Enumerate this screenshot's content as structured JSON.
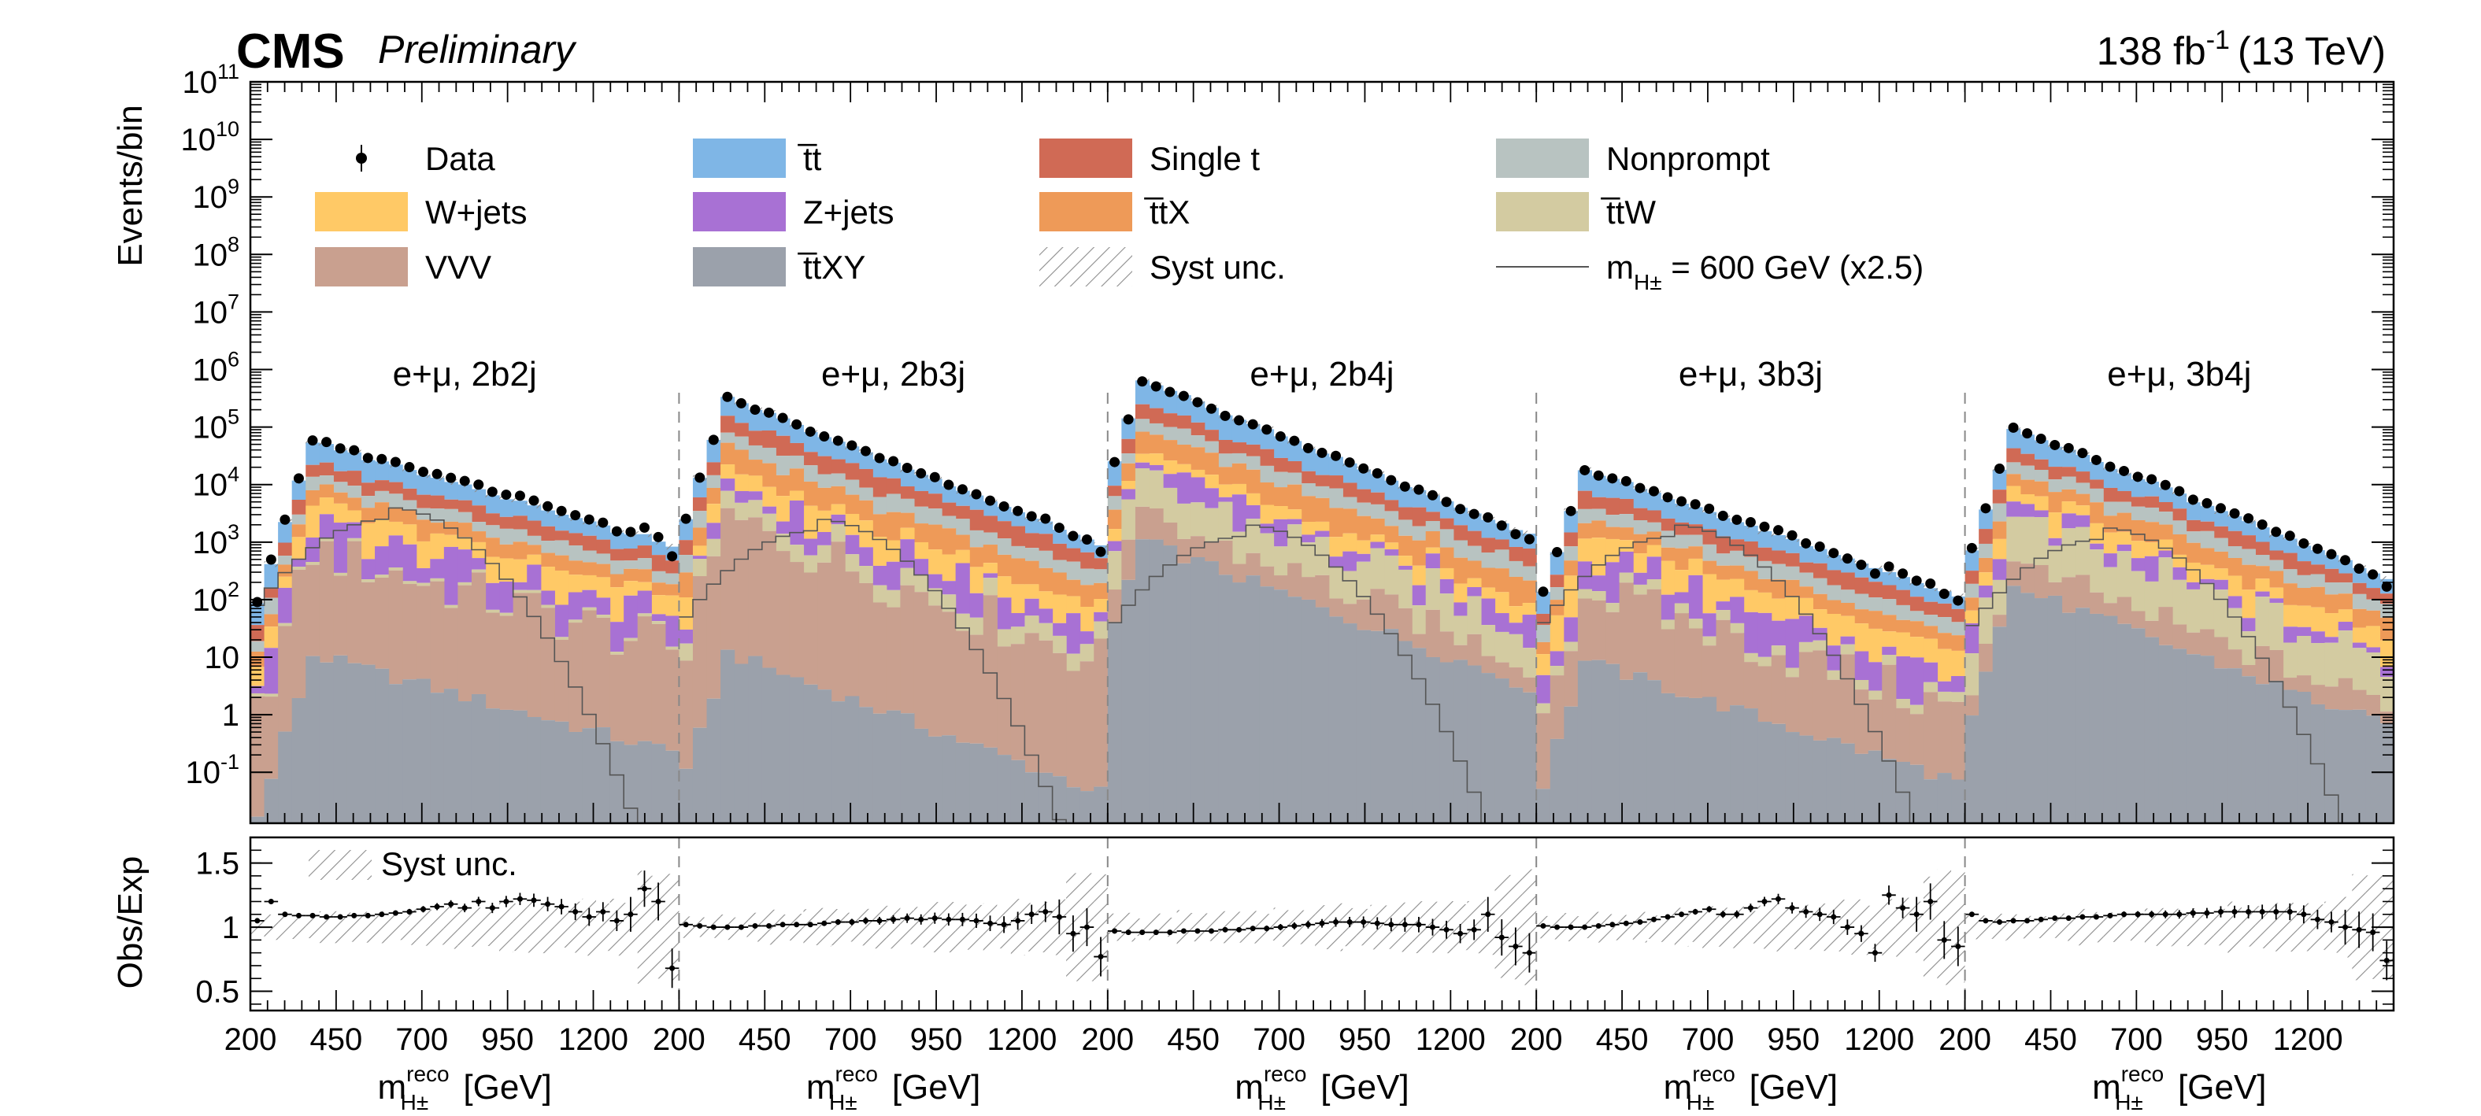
{
  "header": {
    "experiment": "CMS",
    "status": "Preliminary",
    "luminosity_value": "138 fb",
    "luminosity_exponent": "-1",
    "energy": "(13 TeV)"
  },
  "colors": {
    "ttbar": "#7fb6e6",
    "wjets": "#ffc966",
    "vvv": "#c9a08f",
    "zjets": "#a871d4",
    "ttxy": "#9ba1ab",
    "singlet": "#d06a55",
    "ttx": "#ee9a58",
    "nonprompt": "#b8c3c1",
    "ttw": "#d3cba1",
    "signal": "#555555",
    "data": "#000000"
  },
  "chart_data": {
    "type": "stacked-histogram",
    "categories": [
      "e+μ, 2b2j",
      "e+μ, 2b3j",
      "e+μ, 2b4j",
      "e+μ, 3b3j",
      "e+μ, 3b4j"
    ],
    "bins_per_category": 31,
    "x_range_gev": [
      200,
      1450
    ],
    "x_ticks": [
      "200",
      "450",
      "700",
      "950",
      "1200"
    ],
    "x_tick_values": [
      200,
      450,
      700,
      950,
      1200
    ],
    "x_label_main": "m",
    "x_label_sub": "H±",
    "x_label_sup": "reco",
    "x_label_unit": "[GeV]",
    "top_panel": {
      "ylabel": "Events/bin",
      "yscale": "log",
      "ylim": [
        0.013,
        100000000000.0
      ],
      "y_ticks": [
        {
          "base": "10",
          "exp": "-1",
          "value": 0.1
        },
        {
          "base": "1",
          "exp": "",
          "value": 1
        },
        {
          "base": "10",
          "exp": "",
          "value": 10
        },
        {
          "base": "10",
          "exp": "2",
          "value": 100
        },
        {
          "base": "10",
          "exp": "3",
          "value": 1000
        },
        {
          "base": "10",
          "exp": "4",
          "value": 10000
        },
        {
          "base": "10",
          "exp": "5",
          "value": 100000
        },
        {
          "base": "10",
          "exp": "6",
          "value": 1000000
        },
        {
          "base": "10",
          "exp": "7",
          "value": 10000000
        },
        {
          "base": "10",
          "exp": "8",
          "value": 100000000
        },
        {
          "base": "10",
          "exp": "9",
          "value": 1000000000
        },
        {
          "base": "10",
          "exp": "10",
          "value": 10000000000
        },
        {
          "base": "10",
          "exp": "11",
          "value": 100000000000
        }
      ]
    },
    "bottom_panel": {
      "ylabel": "Obs/Exp",
      "ylim": [
        0.35,
        1.7
      ],
      "y_ticks": [
        "0.5",
        "1",
        "1.5"
      ],
      "y_tick_values": [
        0.5,
        1.0,
        1.5
      ],
      "label": "Syst unc."
    },
    "legend": [
      {
        "label": "Data",
        "kind": "data"
      },
      {
        "label": "t̅t",
        "kind": "fill",
        "color_key": "ttbar"
      },
      {
        "label": "Single t",
        "kind": "fill",
        "color_key": "singlet"
      },
      {
        "label": "Nonprompt",
        "kind": "fill",
        "color_key": "nonprompt"
      },
      {
        "label": "W+jets",
        "kind": "fill",
        "color_key": "wjets"
      },
      {
        "label": "Z+jets",
        "kind": "fill",
        "color_key": "zjets"
      },
      {
        "label": "t̅tX",
        "kind": "fill",
        "color_key": "ttx"
      },
      {
        "label": "t̅tW",
        "kind": "fill",
        "color_key": "ttw"
      },
      {
        "label": "VVV",
        "kind": "fill",
        "color_key": "vvv"
      },
      {
        "label": "t̅tXY",
        "kind": "fill",
        "color_key": "ttxy"
      },
      {
        "label": "Syst unc.",
        "kind": "hatch"
      },
      {
        "label": "m",
        "kind": "line",
        "color_key": "signal",
        "sub": "H±",
        "rest": " = 600 GeV (x2.5)"
      }
    ],
    "stack_order": [
      "ttxy",
      "vvv",
      "ttw",
      "zjets",
      "wjets",
      "ttx",
      "nonprompt",
      "singlet",
      "ttbar"
    ],
    "category_peaks": [
      {
        "total_log10": 4.5,
        "peak_bin": 4,
        "slope_log10": 0.075
      },
      {
        "total_log10": 5.25,
        "peak_bin": 3,
        "slope_log10": 0.1
      },
      {
        "total_log10": 5.6,
        "peak_bin": 2,
        "slope_log10": 0.1
      },
      {
        "total_log10": 4.0,
        "peak_bin": 3,
        "slope_log10": 0.087
      },
      {
        "total_log10": 4.7,
        "peak_bin": 3,
        "slope_log10": 0.1
      }
    ],
    "process_fractions_log10": {
      "ttbar": [
        0.0,
        0.0,
        0.0,
        0.0,
        0.0
      ],
      "singlet": [
        -0.55,
        -0.45,
        -0.6,
        -0.5,
        -0.55
      ],
      "nonprompt": [
        -0.8,
        -0.75,
        -0.8,
        -0.75,
        -0.7
      ],
      "ttx": [
        -0.95,
        -0.9,
        -0.95,
        -0.95,
        -0.85
      ],
      "wjets": [
        -1.1,
        -1.3,
        -1.5,
        -1.1,
        -1.2
      ],
      "zjets": [
        -1.45,
        -1.6,
        -1.7,
        -1.5,
        -1.6
      ],
      "ttw": [
        -2.6,
        -1.9,
        -1.7,
        -2.2,
        -1.5
      ],
      "vvv": [
        -1.7,
        -1.9,
        -2.4,
        -1.9,
        -2.4
      ],
      "ttxy": [
        -3.5,
        -4.2,
        -2.6,
        -3.1,
        -2.5
      ]
    },
    "signal_peak_log10": [
      3.6,
      3.4,
      3.3,
      3.3,
      3.25
    ],
    "ratio_values": [
      [
        1.05,
        1.2,
        1.1,
        1.09,
        1.09,
        1.08,
        1.08,
        1.09,
        1.09,
        1.1,
        1.11,
        1.12,
        1.14,
        1.16,
        1.18,
        1.15,
        1.2,
        1.15,
        1.2,
        1.22,
        1.21,
        1.18,
        1.16,
        1.12,
        1.08,
        1.12,
        1.05,
        1.1,
        1.3,
        1.2,
        0.68
      ],
      [
        1.02,
        1.01,
        1.0,
        1.0,
        1.0,
        1.01,
        1.01,
        1.02,
        1.02,
        1.02,
        1.03,
        1.04,
        1.04,
        1.05,
        1.05,
        1.06,
        1.07,
        1.06,
        1.07,
        1.06,
        1.06,
        1.05,
        1.03,
        1.02,
        1.05,
        1.1,
        1.12,
        1.08,
        0.95,
        1.0,
        0.77
      ],
      [
        0.97,
        0.96,
        0.96,
        0.96,
        0.96,
        0.97,
        0.97,
        0.97,
        0.98,
        0.98,
        0.99,
        0.99,
        1.0,
        1.01,
        1.02,
        1.03,
        1.04,
        1.04,
        1.04,
        1.03,
        1.02,
        1.02,
        1.02,
        1.0,
        0.98,
        0.95,
        0.98,
        1.1,
        0.92,
        0.85,
        0.8
      ],
      [
        1.01,
        1.0,
        1.0,
        1.0,
        1.01,
        1.02,
        1.03,
        1.04,
        1.06,
        1.08,
        1.1,
        1.12,
        1.14,
        1.1,
        1.1,
        1.15,
        1.2,
        1.22,
        1.15,
        1.12,
        1.1,
        1.08,
        1.0,
        0.95,
        0.8,
        1.25,
        1.15,
        1.1,
        1.2,
        0.9,
        0.85
      ],
      [
        1.1,
        1.05,
        1.04,
        1.05,
        1.05,
        1.06,
        1.07,
        1.07,
        1.08,
        1.08,
        1.09,
        1.1,
        1.1,
        1.1,
        1.1,
        1.1,
        1.11,
        1.11,
        1.12,
        1.12,
        1.12,
        1.12,
        1.12,
        1.12,
        1.1,
        1.06,
        1.04,
        1.0,
        0.98,
        0.96,
        0.74
      ]
    ]
  }
}
